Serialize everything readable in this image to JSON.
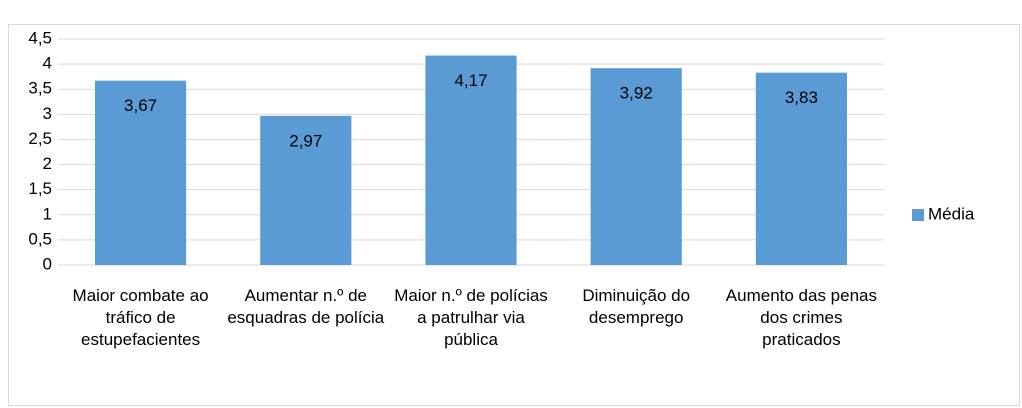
{
  "chart_data": {
    "type": "bar",
    "categories": [
      "Maior combate ao tráfico de estupefacientes",
      "Aumentar n.º de esquadras de polícia",
      "Maior n.º de polícias a patrulhar via pública",
      "Diminuição do desemprego",
      "Aumento das penas dos crimes praticados"
    ],
    "series": [
      {
        "name": "Média",
        "color": "#5b9bd5",
        "values": [
          3.67,
          2.97,
          4.17,
          3.92,
          3.83
        ],
        "value_labels": [
          "3,67",
          "2,97",
          "4,17",
          "3,92",
          "3,83"
        ]
      }
    ],
    "ylim": [
      0,
      4.5
    ],
    "yticks": [
      0,
      {
        "value": 0.5,
        "label": "0,5"
      },
      1,
      {
        "value": 1.5,
        "label": "1,5"
      },
      2,
      {
        "value": 2.5,
        "label": "2,5"
      },
      3,
      {
        "value": 3.5,
        "label": "3,5"
      },
      4,
      {
        "value": 4.5,
        "label": "4,5"
      }
    ],
    "grid": true,
    "legend": "right"
  }
}
